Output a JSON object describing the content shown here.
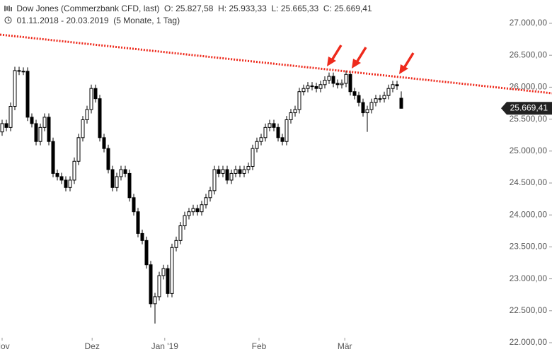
{
  "chart_data": {
    "type": "candlestick",
    "title": "Dow Jones (Commerzbank CFD, last)  O: 25.827,58  H: 25.933,33  L: 25.665,33  C: 25.669,41",
    "subtitle": "01.11.2018 - 20.03.2019  (5 Monate, 1 Tag)",
    "up_color": "#ffffff",
    "down_color": "#000000",
    "open": [
      25300,
      25430,
      25370,
      25700,
      26260,
      26250,
      26250,
      25530,
      25430,
      25150,
      25370,
      25530,
      25150,
      24650,
      24600,
      24545,
      24430,
      24545,
      24840,
      25210,
      25490,
      25650,
      25980,
      25820,
      25210,
      25040,
      24710,
      24430,
      24600,
      24710,
      24650,
      24270,
      24050,
      23710,
      23600,
      23220,
      22610,
      22720,
      23050,
      23160,
      22770,
      23490,
      23600,
      23830,
      23990,
      24050,
      24100,
      24050,
      24160,
      24270,
      24380,
      24710,
      24650,
      24710,
      24545,
      24650,
      24710,
      24650,
      24710,
      24760,
      25040,
      25150,
      25210,
      25370,
      25430,
      25370,
      25210,
      25150,
      25490,
      25600,
      25650,
      25930,
      25980,
      26020,
      26010,
      25980,
      26040,
      26110,
      26170,
      26060,
      26040,
      26060,
      26200,
      25930,
      25870,
      25760,
      25600,
      25650,
      25760,
      25820,
      25820,
      25870,
      25980,
      26040,
      25827.58
    ],
    "high": [
      25490,
      25490,
      25760,
      26320,
      26320,
      26310,
      26310,
      25590,
      25490,
      25430,
      25590,
      25590,
      25210,
      24710,
      24660,
      24605,
      24605,
      24900,
      25270,
      25550,
      25710,
      26040,
      26040,
      25880,
      25270,
      25100,
      24770,
      24660,
      24770,
      24770,
      24710,
      24330,
      24110,
      23770,
      23660,
      23280,
      22780,
      23110,
      23220,
      23220,
      23550,
      23660,
      23890,
      24050,
      24110,
      24160,
      24160,
      24220,
      24330,
      24440,
      24770,
      24770,
      24770,
      24770,
      24710,
      24770,
      24770,
      24770,
      24820,
      25100,
      25210,
      25270,
      25430,
      25490,
      25490,
      25430,
      25270,
      25550,
      25660,
      25710,
      25990,
      26040,
      26080,
      26080,
      26070,
      26100,
      26170,
      26230,
      26230,
      26120,
      26120,
      26260,
      26260,
      25990,
      25930,
      25820,
      25710,
      25820,
      25880,
      25880,
      25930,
      26040,
      26100,
      26100,
      25933.33
    ],
    "low": [
      25240,
      25310,
      25310,
      25640,
      26190,
      26190,
      25470,
      25370,
      25090,
      25090,
      25310,
      25090,
      24590,
      24540,
      24485,
      24370,
      24370,
      24485,
      24780,
      25150,
      25430,
      25590,
      25760,
      25150,
      24980,
      24650,
      24370,
      24370,
      24540,
      24590,
      24210,
      23990,
      23650,
      23540,
      23160,
      22550,
      22300,
      22660,
      22990,
      22710,
      22710,
      23430,
      23540,
      23770,
      23930,
      23990,
      23990,
      23990,
      24100,
      24210,
      24320,
      24590,
      24590,
      24485,
      24485,
      24590,
      24590,
      24590,
      24650,
      24700,
      24980,
      25090,
      25150,
      25310,
      25310,
      25150,
      25090,
      25090,
      25430,
      25540,
      25590,
      25870,
      25920,
      25950,
      25920,
      25920,
      25980,
      26050,
      26000,
      25980,
      25980,
      26000,
      25870,
      25810,
      25700,
      25540,
      25300,
      25590,
      25700,
      25760,
      25760,
      25810,
      25920,
      25960,
      25665.33
    ],
    "close": [
      25430,
      25370,
      25700,
      26260,
      26250,
      26250,
      25530,
      25430,
      25150,
      25370,
      25530,
      25150,
      24650,
      24600,
      24545,
      24430,
      24545,
      24840,
      25210,
      25490,
      25650,
      25980,
      25820,
      25210,
      25040,
      24710,
      24430,
      24600,
      24710,
      24650,
      24270,
      24050,
      23710,
      23600,
      23220,
      22610,
      22720,
      23050,
      23160,
      22770,
      23490,
      23600,
      23830,
      23990,
      24050,
      24100,
      24050,
      24160,
      24270,
      24380,
      24710,
      24650,
      24710,
      24545,
      24650,
      24710,
      24650,
      24710,
      24760,
      25040,
      25150,
      25210,
      25370,
      25430,
      25370,
      25210,
      25150,
      25490,
      25600,
      25650,
      25930,
      25980,
      26020,
      26010,
      25980,
      26040,
      26110,
      26170,
      26060,
      26040,
      26060,
      26200,
      25930,
      25870,
      25760,
      25600,
      25650,
      25760,
      25820,
      25820,
      25870,
      25980,
      26040,
      26020,
      25669.41
    ],
    "xlim": [
      -0.5,
      129.5
    ],
    "xticks": [
      {
        "value": 0,
        "label": "Nov"
      },
      {
        "value": 21.2,
        "label": "Dez"
      },
      {
        "value": 38.3,
        "label": "Jan '19"
      },
      {
        "value": 60.5,
        "label": "Feb"
      },
      {
        "value": 80.7,
        "label": "Mär"
      }
    ],
    "ylim": [
      21834,
      27365
    ],
    "yticks": [
      {
        "value": 22000,
        "label": "22.000,00"
      },
      {
        "value": 22500,
        "label": "22.500,00"
      },
      {
        "value": 23000,
        "label": "23.000,00"
      },
      {
        "value": 23500,
        "label": "23.500,00"
      },
      {
        "value": 24000,
        "label": "24.000,00"
      },
      {
        "value": 24500,
        "label": "24.500,00"
      },
      {
        "value": 25000,
        "label": "25.000,00"
      },
      {
        "value": 25500,
        "label": "25.500,00"
      },
      {
        "value": 26000,
        "label": "26.000,00"
      },
      {
        "value": 26500,
        "label": "26.500,00"
      },
      {
        "value": 27000,
        "label": "27.000,00"
      }
    ],
    "last_price": {
      "value": 25669.41,
      "label": "25.669,41"
    },
    "trendline": {
      "x": [
        -0.5,
        129.5
      ],
      "y": [
        26823,
        25905
      ],
      "color": "#ee2a1c"
    }
  }
}
